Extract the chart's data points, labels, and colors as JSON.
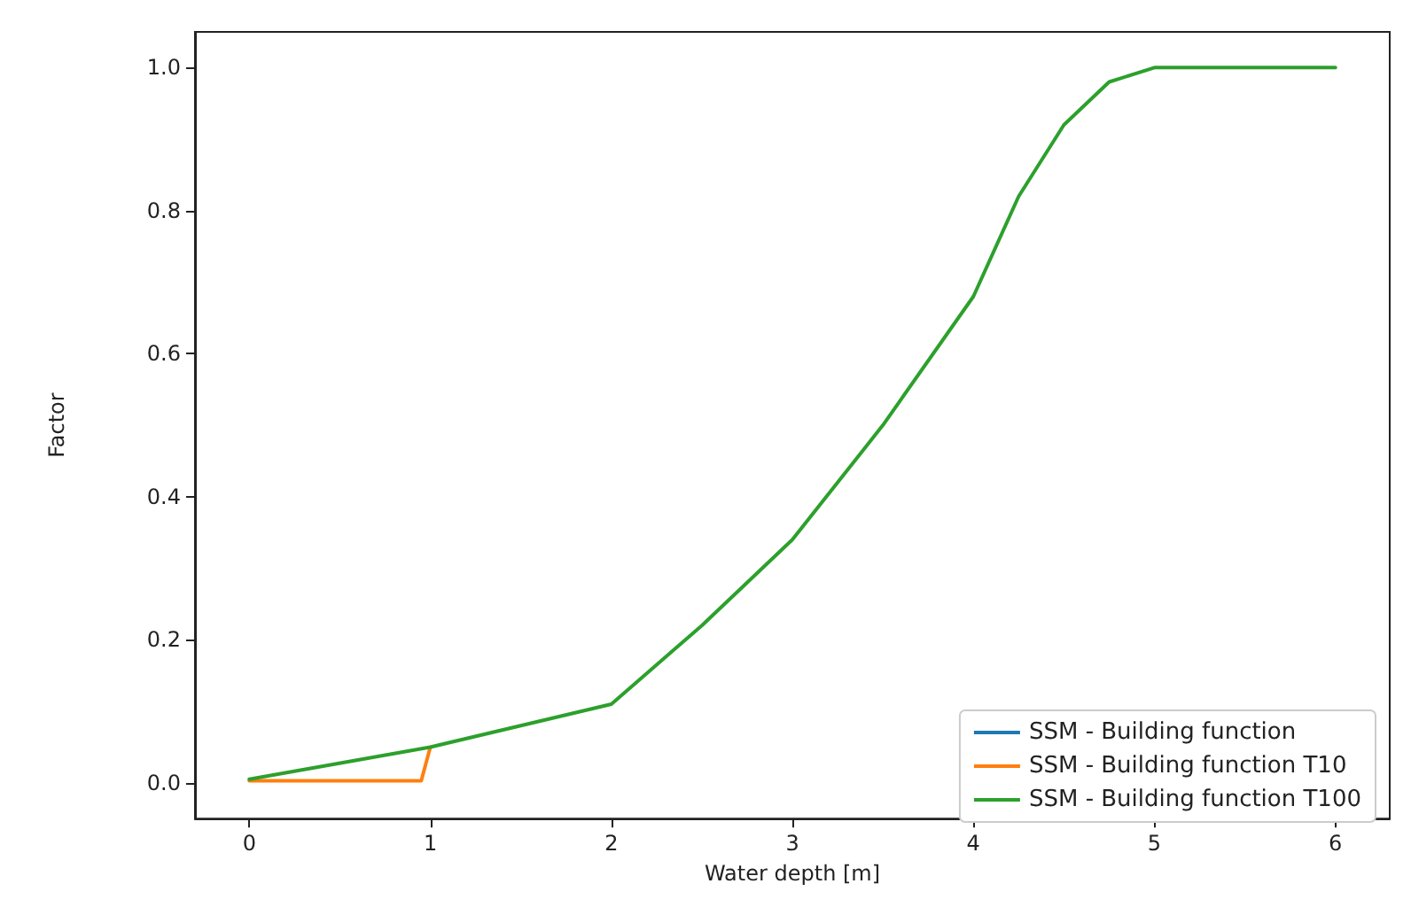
{
  "chart_data": {
    "type": "line",
    "xlabel": "Water depth [m]",
    "ylabel": "Factor",
    "xlim": [
      -0.3,
      6.3
    ],
    "ylim": [
      -0.05,
      1.05
    ],
    "xticks": [
      0,
      1,
      2,
      3,
      4,
      5,
      6
    ],
    "yticks": [
      {
        "value": 0,
        "label": "0.0"
      },
      0.2,
      0.4,
      0.6,
      0.8,
      {
        "value": 1,
        "label": "1.0"
      }
    ],
    "legend": "bottom right",
    "grid": false,
    "marker": "none",
    "line_style": "solid",
    "series": [
      {
        "name": "SSM - Building function",
        "color": "#1f77b4"
      },
      {
        "name": "SSM - Building function T10",
        "color": "#ff7f0e",
        "x": [
          0,
          0.95,
          1
        ],
        "values": [
          0.003,
          0.003,
          0.05
        ]
      },
      {
        "name": "SSM - Building function T100",
        "color": "#2ca02c",
        "x": [
          0,
          1,
          2,
          2.5,
          3,
          3.5,
          4,
          4.25,
          4.5,
          4.75,
          5,
          6
        ],
        "values": [
          0.005,
          0.05,
          0.11,
          0.22,
          0.34,
          0.5,
          0.68,
          0.82,
          0.92,
          0.98,
          1,
          1
        ]
      }
    ]
  }
}
